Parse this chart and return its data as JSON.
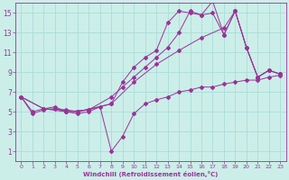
{
  "xlabel": "Windchill (Refroidissement éolien,°C)",
  "bg_color": "#cceee8",
  "grid_color": "#aaddd8",
  "line_color": "#993399",
  "xlim": [
    -0.5,
    23.5
  ],
  "ylim": [
    0,
    16
  ],
  "xticks": [
    0,
    1,
    2,
    3,
    4,
    5,
    6,
    7,
    8,
    9,
    10,
    11,
    12,
    13,
    14,
    15,
    16,
    17,
    18,
    19,
    20,
    21,
    22,
    23
  ],
  "yticks": [
    1,
    3,
    5,
    7,
    9,
    11,
    13,
    15
  ],
  "series": [
    {
      "x": [
        0,
        1,
        2,
        3,
        4,
        5,
        6,
        7,
        8,
        9,
        10,
        11,
        12,
        13,
        14,
        15,
        16,
        17,
        18,
        19,
        20,
        21,
        22,
        23
      ],
      "y": [
        6.5,
        4.8,
        5.2,
        5.3,
        5.0,
        4.8,
        5.0,
        5.5,
        1.0,
        2.5,
        4.8,
        5.8,
        6.2,
        6.5,
        7.0,
        7.2,
        7.5,
        7.5,
        7.8,
        8.0,
        8.2,
        8.2,
        8.5,
        8.7
      ]
    },
    {
      "x": [
        0,
        2,
        4,
        5,
        8,
        9,
        10,
        11,
        12,
        13,
        14,
        15,
        16,
        17,
        18,
        19,
        20,
        21,
        22,
        23
      ],
      "y": [
        6.5,
        5.3,
        5.2,
        5.0,
        5.8,
        8.0,
        9.5,
        10.5,
        11.2,
        14.0,
        15.2,
        15.0,
        14.8,
        16.2,
        12.8,
        15.2,
        11.5,
        8.5,
        9.2,
        8.8
      ]
    },
    {
      "x": [
        0,
        1,
        2,
        3,
        4,
        5,
        6,
        8,
        9,
        10,
        11,
        12,
        13,
        14,
        15,
        16,
        17,
        18,
        19,
        20,
        21,
        22,
        23
      ],
      "y": [
        6.5,
        5.0,
        5.3,
        5.5,
        5.0,
        5.0,
        5.2,
        6.5,
        7.5,
        8.5,
        9.5,
        10.5,
        11.5,
        13.0,
        15.2,
        14.8,
        15.0,
        12.8,
        15.2,
        11.5,
        8.5,
        9.2,
        8.8
      ]
    },
    {
      "x": [
        0,
        2,
        4,
        6,
        8,
        10,
        12,
        14,
        16,
        18,
        19,
        20,
        21,
        22,
        23
      ],
      "y": [
        6.5,
        5.3,
        5.0,
        5.2,
        5.8,
        8.0,
        9.8,
        11.2,
        12.5,
        13.5,
        15.2,
        11.5,
        8.5,
        9.2,
        8.8
      ]
    }
  ]
}
